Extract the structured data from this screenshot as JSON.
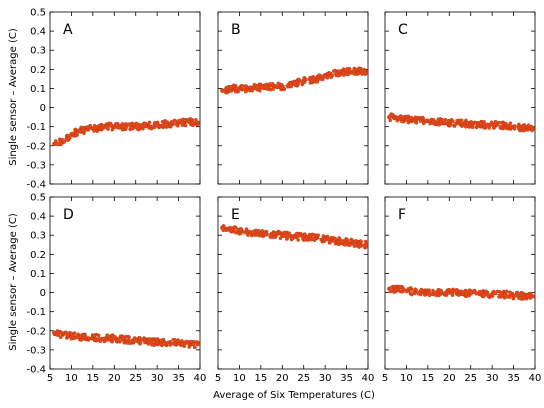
{
  "chart_data": {
    "type": "scatter",
    "layout": "2x3 grid of panels with shared axes",
    "xlabel": "Average of Six Temperatures (C)",
    "ylabel": "Single sensor – Average (C)",
    "xlim": [
      5,
      40
    ],
    "ylim": [
      -0.4,
      0.5
    ],
    "x_ticks": [
      "5",
      "10",
      "15",
      "20",
      "25",
      "30",
      "35",
      "40"
    ],
    "y_ticks": [
      "-0.4",
      "-0.3",
      "-0.2",
      "-0.1",
      "0",
      "0.1",
      "0.2",
      "0.3",
      "0.4",
      "0.5"
    ],
    "marker_color": "#e34a1c",
    "panels": [
      {
        "label": "A",
        "x": [
          6,
          8,
          10,
          12,
          15,
          18,
          20,
          22,
          25,
          28,
          30,
          33,
          35,
          38,
          39.5
        ],
        "y": [
          -0.19,
          -0.18,
          -0.14,
          -0.12,
          -0.11,
          -0.1,
          -0.1,
          -0.1,
          -0.1,
          -0.095,
          -0.09,
          -0.085,
          -0.08,
          -0.075,
          -0.08
        ]
      },
      {
        "label": "B",
        "x": [
          6,
          8,
          10,
          12,
          15,
          18,
          20,
          22,
          25,
          28,
          30,
          33,
          35,
          38,
          39.5
        ],
        "y": [
          0.09,
          0.1,
          0.1,
          0.1,
          0.105,
          0.11,
          0.11,
          0.12,
          0.14,
          0.15,
          0.17,
          0.18,
          0.19,
          0.19,
          0.18
        ]
      },
      {
        "label": "C",
        "x": [
          6,
          8,
          10,
          12,
          15,
          18,
          20,
          22,
          25,
          28,
          30,
          33,
          35,
          38,
          39.5
        ],
        "y": [
          -0.05,
          -0.055,
          -0.06,
          -0.065,
          -0.07,
          -0.075,
          -0.08,
          -0.08,
          -0.085,
          -0.09,
          -0.09,
          -0.095,
          -0.1,
          -0.105,
          -0.11
        ]
      },
      {
        "label": "D",
        "x": [
          6,
          8,
          10,
          12,
          15,
          18,
          20,
          22,
          25,
          28,
          30,
          33,
          35,
          38,
          39.5
        ],
        "y": [
          -0.21,
          -0.22,
          -0.225,
          -0.23,
          -0.235,
          -0.24,
          -0.24,
          -0.245,
          -0.25,
          -0.255,
          -0.26,
          -0.26,
          -0.265,
          -0.27,
          -0.27
        ]
      },
      {
        "label": "E",
        "x": [
          6,
          8,
          10,
          12,
          15,
          18,
          20,
          22,
          25,
          28,
          30,
          33,
          35,
          38,
          39.5
        ],
        "y": [
          0.34,
          0.33,
          0.32,
          0.315,
          0.31,
          0.305,
          0.3,
          0.295,
          0.29,
          0.285,
          0.28,
          0.27,
          0.265,
          0.255,
          0.25
        ]
      },
      {
        "label": "F",
        "x": [
          6,
          8,
          10,
          12,
          15,
          18,
          20,
          22,
          25,
          28,
          30,
          33,
          35,
          38,
          39.5
        ],
        "y": [
          0.02,
          0.015,
          0.01,
          0.005,
          0.0,
          0.0,
          0.0,
          0.0,
          -0.005,
          -0.005,
          -0.01,
          -0.01,
          -0.015,
          -0.02,
          -0.02
        ]
      }
    ]
  }
}
